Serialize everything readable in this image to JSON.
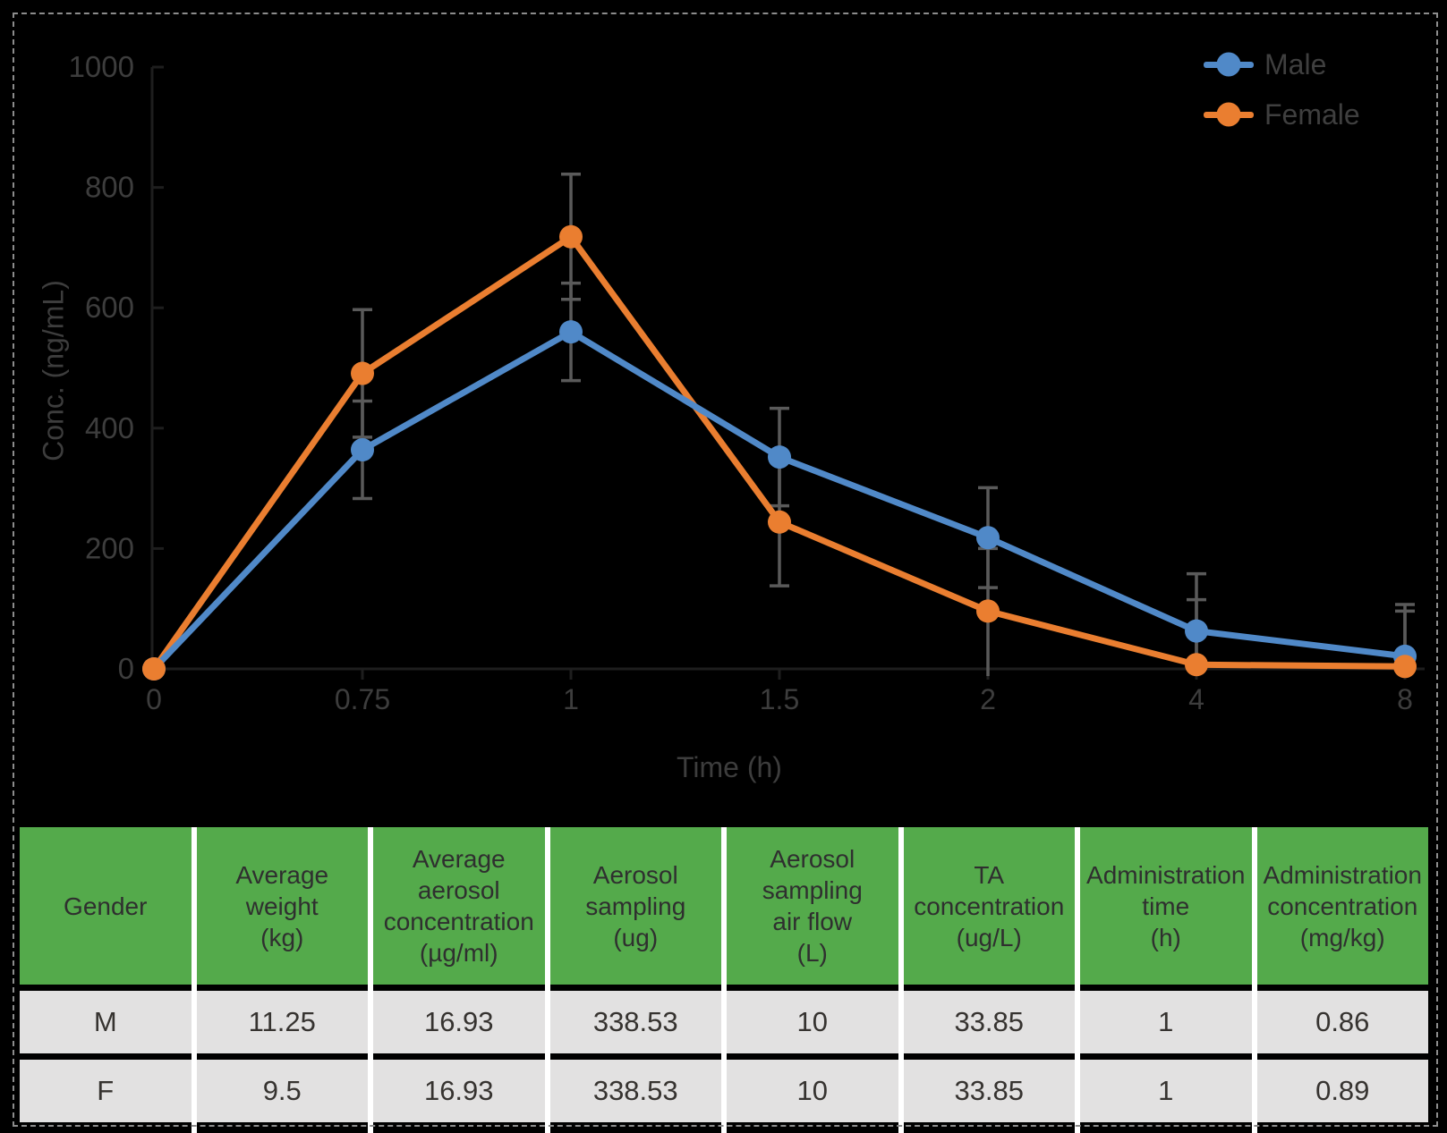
{
  "figure": {
    "background": "#000000",
    "border_color": "#8c8c8c"
  },
  "chart_data": {
    "type": "line",
    "title": "",
    "xlabel": "Time (h)",
    "ylabel": "Conc. (ng/mL)",
    "x_axis_type": "categorical",
    "categories": [
      "0",
      "0.75",
      "1",
      "1.5",
      "2",
      "4",
      "8"
    ],
    "y_ticks": [
      0,
      200,
      400,
      600,
      800,
      1000
    ],
    "ylim": [
      0,
      1000
    ],
    "grid": "off",
    "legend_position": "top-right",
    "error_bars": "on",
    "series": [
      {
        "name": "Male",
        "color": "#5089C8",
        "values": [
          0,
          364,
          560,
          352,
          218,
          63,
          21
        ],
        "errors": [
          0,
          81,
          81,
          81,
          83,
          95,
          86
        ]
      },
      {
        "name": "Female",
        "color": "#EA7E30",
        "values": [
          0,
          491,
          718,
          244,
          96,
          7,
          4
        ],
        "errors": [
          0,
          106,
          104,
          106,
          104,
          108,
          92
        ]
      }
    ],
    "error_bar_color": "#5A5A5A",
    "axis_color": "#1e1e1e",
    "text_color": "#3d3d3d"
  },
  "table": {
    "header_bg": "#54AA4B",
    "row_bg": "#E2E1E1",
    "separator_color": "#ffffff",
    "columns": [
      "Gender",
      "Average\nweight\n(kg)",
      "Average\naerosol\nconcentration\n(µg/ml)",
      "Aerosol\nsampling\n(ug)",
      "Aerosol\nsampling\nair flow\n(L)",
      "TA\nconcentration\n(ug/L)",
      "Administration\ntime\n(h)",
      "Administration\nconcentration\n(mg/kg)"
    ],
    "rows": [
      {
        "cells": [
          "M",
          "11.25",
          "16.93",
          "338.53",
          "10",
          "33.85",
          "1",
          "0.86"
        ]
      },
      {
        "cells": [
          "F",
          "9.5",
          "16.93",
          "338.53",
          "10",
          "33.85",
          "1",
          "0.89"
        ]
      }
    ]
  }
}
